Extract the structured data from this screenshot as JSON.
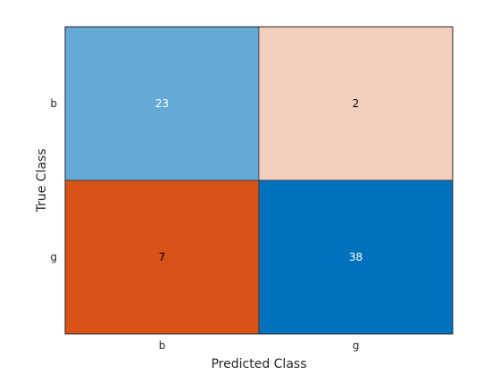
{
  "chart_data": {
    "type": "heatmap",
    "chart_kind": "confusion-matrix",
    "xlabel": "Predicted Class",
    "ylabel": "True Class",
    "x_categories": [
      "b",
      "g"
    ],
    "y_categories": [
      "b",
      "g"
    ],
    "values": [
      [
        23,
        2
      ],
      [
        7,
        38
      ]
    ],
    "colors": {
      "diagonal_high": "#0072bd",
      "diagonal_low": "#ffffff",
      "off_diagonal_high": "#d95319",
      "off_diagonal_low": "#ffffff",
      "dark_text": "#000000",
      "light_text": "#ffffff",
      "axis": "#262626"
    }
  }
}
